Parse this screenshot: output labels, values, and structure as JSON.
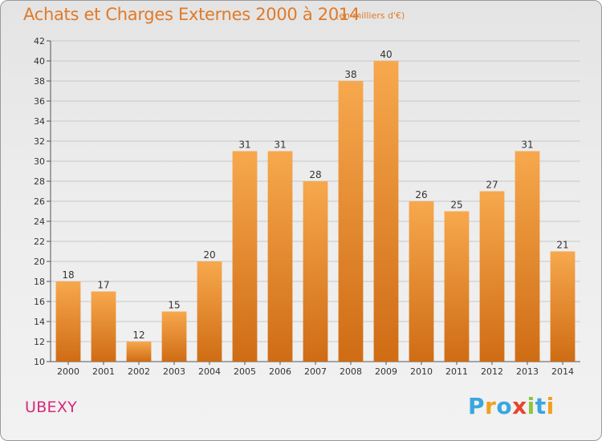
{
  "title": "Achats et Charges Externes 2000 à 2014",
  "unit_note": "(en milliers d'€)",
  "place_name": "UBEXY",
  "logo": {
    "text": "Proxiti",
    "letters": [
      {
        "ch": "P",
        "color": "#3aa6e0"
      },
      {
        "ch": "r",
        "color": "#f0a020"
      },
      {
        "ch": "o",
        "color": "#3aa6e0"
      },
      {
        "ch": "x",
        "color": "#e8442c"
      },
      {
        "ch": "i",
        "color": "#8cc63f"
      },
      {
        "ch": "t",
        "color": "#3aa6e0"
      },
      {
        "ch": "i",
        "color": "#f0a020"
      }
    ]
  },
  "colors": {
    "bar_light": "#f7a84d",
    "bar_dark": "#cf6c14",
    "title": "#e07a28",
    "place": "#d6297a",
    "grid": "#c8c8c8"
  },
  "chart_data": {
    "type": "bar",
    "categories": [
      "2000",
      "2001",
      "2002",
      "2003",
      "2004",
      "2005",
      "2006",
      "2007",
      "2008",
      "2009",
      "2010",
      "2011",
      "2012",
      "2013",
      "2014"
    ],
    "values": [
      18,
      17,
      12,
      15,
      20,
      31,
      31,
      28,
      38,
      40,
      26,
      25,
      27,
      31,
      21
    ],
    "ylim": [
      10,
      42
    ],
    "yticks": [
      10,
      12,
      14,
      16,
      18,
      20,
      22,
      24,
      26,
      28,
      30,
      32,
      34,
      36,
      38,
      40,
      42
    ],
    "grid": true
  }
}
